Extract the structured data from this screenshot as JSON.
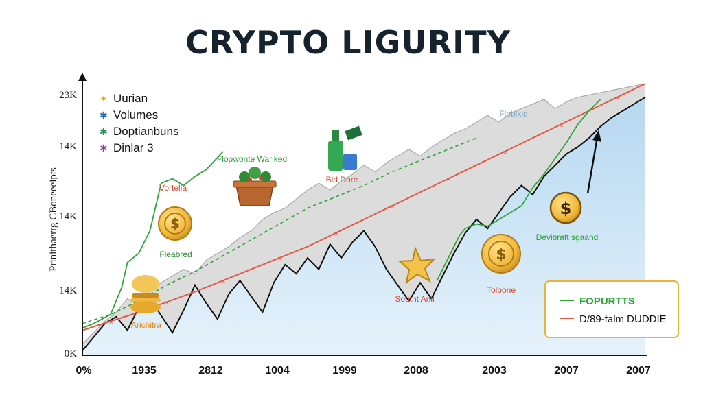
{
  "colors": {
    "background": "#ffffff",
    "area_fill": "#cfe6f6",
    "grey_band": "#d6d6d6",
    "black_line": "#111111",
    "red_line": "#e05a45",
    "green_line": "#2ea33a",
    "gold": "#e8b33a"
  },
  "icons": [
    "star-icon",
    "figure-icon",
    "figure-icon",
    "figure-icon",
    "coin-icon",
    "plant-icon",
    "bottle-icon",
    "burger-icon"
  ],
  "chart_data": {
    "type": "line",
    "title": "CRYPTO LIGURITY",
    "ylabel": "Prinithaerrg CBoneeeipts",
    "xlabel": "",
    "x_ticks": [
      "0%",
      "1935",
      "2812",
      "1004",
      "1999",
      "2008",
      "2003",
      "2007",
      "2007"
    ],
    "y_ticks": [
      "23K",
      "14K",
      "14K",
      "14K",
      "0K"
    ],
    "y_tick_values": [
      23,
      14,
      14,
      14,
      0
    ],
    "legend_placement": "top-left",
    "legend": [
      "Uurian",
      "Volumes",
      "Doptianbuns",
      "Dinlar 3"
    ],
    "grid": false,
    "series": [
      {
        "key": "black",
        "x": [
          0,
          2,
          4,
          6,
          8,
          10,
          12,
          14,
          16,
          18,
          20,
          22,
          24,
          26,
          28,
          30,
          32,
          34,
          36,
          38,
          40,
          42,
          44,
          46,
          48,
          50,
          52,
          54,
          56,
          58,
          60,
          62,
          64,
          66,
          68,
          70,
          72,
          74,
          76,
          78,
          80,
          82,
          84,
          86,
          88,
          90,
          92,
          94,
          96,
          98,
          100
        ],
        "y": [
          0.4,
          1.6,
          2.8,
          3.4,
          2.2,
          4.2,
          5.0,
          3.5,
          2.0,
          4.0,
          6.2,
          4.6,
          3.2,
          5.4,
          6.6,
          5.2,
          3.8,
          6.4,
          8.0,
          7.2,
          8.6,
          7.6,
          9.8,
          8.6,
          10.0,
          11.0,
          9.6,
          7.6,
          6.2,
          4.8,
          6.4,
          5.0,
          7.0,
          9.0,
          10.8,
          12.0,
          11.2,
          12.6,
          14.0,
          15.0,
          14.2,
          15.8,
          16.8,
          17.8,
          18.4,
          19.2,
          20.2,
          21.0,
          21.6,
          22.2,
          22.8
        ]
      },
      {
        "key": "grey",
        "x": [
          0,
          2,
          4,
          6,
          8,
          10,
          12,
          14,
          16,
          18,
          20,
          22,
          24,
          26,
          28,
          30,
          32,
          34,
          36,
          38,
          40,
          42,
          44,
          46,
          48,
          50,
          52,
          54,
          56,
          58,
          60,
          62,
          64,
          66,
          68,
          70,
          72,
          74,
          76,
          78,
          80,
          82,
          84,
          86,
          88,
          90,
          92,
          94,
          96,
          98,
          100
        ],
        "y": [
          1.0,
          2.0,
          3.0,
          3.8,
          5.0,
          4.4,
          5.6,
          6.4,
          7.0,
          7.6,
          7.2,
          8.4,
          9.0,
          9.6,
          10.4,
          11.0,
          12.0,
          12.6,
          13.0,
          13.8,
          14.6,
          15.2,
          14.6,
          15.4,
          16.0,
          16.8,
          16.2,
          17.0,
          17.6,
          18.2,
          17.6,
          18.4,
          19.0,
          19.6,
          20.0,
          20.6,
          21.2,
          20.6,
          21.4,
          21.8,
          22.2,
          22.6,
          21.8,
          22.4,
          22.8,
          23.0,
          23.2,
          23.4,
          23.6,
          23.8,
          24.0
        ]
      },
      {
        "key": "red",
        "x": [
          0,
          5,
          10,
          15,
          20,
          25,
          30,
          35,
          40,
          45,
          50,
          55,
          60,
          65,
          70,
          75,
          80,
          85,
          90,
          95,
          100
        ],
        "y": [
          2.2,
          3.0,
          3.8,
          4.7,
          5.6,
          6.6,
          7.6,
          8.6,
          9.6,
          10.8,
          12.0,
          13.2,
          14.4,
          15.6,
          16.8,
          18.0,
          19.2,
          20.4,
          21.6,
          22.8,
          24.0
        ]
      },
      {
        "key": "green_dashed",
        "x": [
          0,
          5,
          10,
          15,
          20,
          25,
          30,
          35,
          40,
          45,
          50,
          55,
          60,
          65,
          70
        ],
        "y": [
          2.8,
          3.6,
          4.8,
          6.2,
          7.4,
          8.8,
          10.2,
          11.6,
          13.0,
          14.0,
          15.0,
          16.2,
          17.2,
          18.2,
          19.2
        ]
      },
      {
        "key": "green_solid",
        "x": [
          0,
          2,
          5,
          7,
          8,
          9,
          10,
          12,
          14,
          16,
          18,
          20,
          22,
          25,
          63,
          65,
          66,
          67,
          68,
          70,
          72,
          74,
          76,
          78,
          80,
          82,
          84,
          86,
          88,
          90,
          92
        ],
        "y": [
          2.4,
          2.8,
          3.6,
          6.0,
          8.2,
          8.6,
          9.0,
          11.0,
          15.2,
          15.6,
          15.0,
          15.8,
          16.4,
          18.0,
          6.6,
          8.6,
          9.6,
          10.6,
          11.2,
          11.6,
          11.4,
          12.0,
          12.6,
          13.2,
          14.8,
          16.0,
          17.4,
          18.8,
          20.4,
          21.6,
          22.6
        ]
      }
    ],
    "annotations": [
      {
        "key": "vortells",
        "text": "Vortella"
      },
      {
        "key": "flopwonte",
        "text": "Flopwonte Warlked"
      },
      {
        "key": "fleabred",
        "text": "Fleabred"
      },
      {
        "key": "arichitra",
        "text": "Arichitra"
      },
      {
        "key": "bid_done",
        "text": "Bid Dore"
      },
      {
        "key": "flipbkid",
        "text": "Flpblkid"
      },
      {
        "key": "southe_anil",
        "text": "Southt Anil"
      },
      {
        "key": "tolbone",
        "text": "Tolbone"
      },
      {
        "key": "devibraft",
        "text": "Devibraft sgaand"
      }
    ]
  },
  "legend_box": {
    "entries": [
      {
        "label": "FOPURTTS",
        "color": "#2ea33a"
      },
      {
        "label": "D/89-falm DUDDIE",
        "color": "#e05a45"
      }
    ]
  }
}
